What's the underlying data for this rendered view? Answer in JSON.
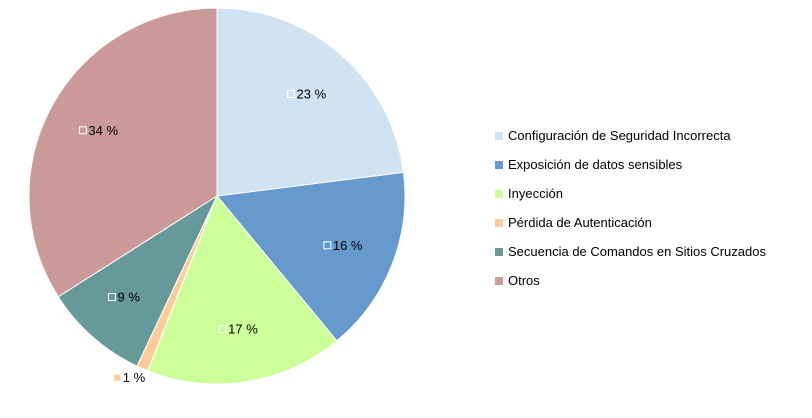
{
  "chart_data": {
    "type": "pie",
    "categories": [
      "Configuración de Seguridad Incorrecta",
      "Exposición de datos sensibles",
      "Inyección",
      "Pérdida de Autenticación",
      "Secuencia de Comandos en Sitios Cruzados",
      "Otros"
    ],
    "values": [
      23,
      16,
      17,
      1,
      9,
      34
    ],
    "value_labels": [
      "23 %",
      "16 %",
      "17 %",
      "1 %",
      "9 %",
      "34 %"
    ],
    "colors": [
      "#cfe3f3",
      "#6699cc",
      "#ccff99",
      "#ffcc99",
      "#669999",
      "#cc9999"
    ],
    "start_angle": "12 o'clock",
    "direction": "clockwise",
    "legend": "right"
  }
}
